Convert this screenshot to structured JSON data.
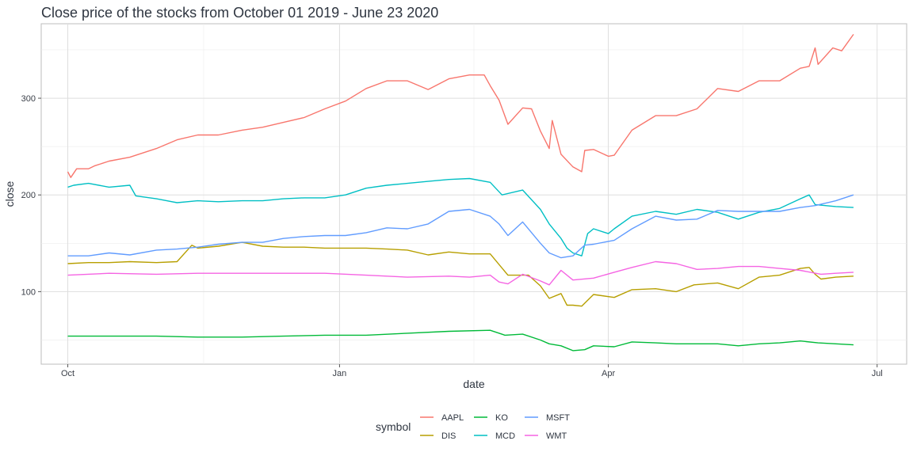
{
  "chart_data": {
    "type": "line",
    "title": "Close price of the stocks from October 01 2019 - June 23 2020",
    "xlabel": "date",
    "ylabel": "close",
    "x_ticks": [
      "Oct",
      "Jan",
      "Apr",
      "Jul"
    ],
    "y_ticks": [
      "100",
      "200",
      "300"
    ],
    "legend_title": "symbol",
    "legend_position": "bottom",
    "grid": true,
    "xlim": [
      "2019-09-22",
      "2020-07-11"
    ],
    "ylim": [
      25,
      377
    ],
    "series": [
      {
        "name": "AAPL",
        "color": "#F8766D",
        "points": [
          [
            "2019-10-01",
            224
          ],
          [
            "2019-10-02",
            218
          ],
          [
            "2019-10-04",
            227
          ],
          [
            "2019-10-08",
            227
          ],
          [
            "2019-10-10",
            230
          ],
          [
            "2019-10-15",
            235
          ],
          [
            "2019-10-22",
            239
          ],
          [
            "2019-10-31",
            248
          ],
          [
            "2019-11-07",
            257
          ],
          [
            "2019-11-14",
            262
          ],
          [
            "2019-11-21",
            262
          ],
          [
            "2019-11-29",
            267
          ],
          [
            "2019-12-06",
            270
          ],
          [
            "2019-12-13",
            275
          ],
          [
            "2019-12-20",
            280
          ],
          [
            "2019-12-27",
            289
          ],
          [
            "2020-01-03",
            297
          ],
          [
            "2020-01-10",
            310
          ],
          [
            "2020-01-17",
            318
          ],
          [
            "2020-01-24",
            318
          ],
          [
            "2020-01-31",
            309
          ],
          [
            "2020-02-07",
            320
          ],
          [
            "2020-02-14",
            324
          ],
          [
            "2020-02-19",
            324
          ],
          [
            "2020-02-21",
            313
          ],
          [
            "2020-02-24",
            298
          ],
          [
            "2020-02-27",
            273
          ],
          [
            "2020-03-03",
            290
          ],
          [
            "2020-03-06",
            289
          ],
          [
            "2020-03-09",
            266
          ],
          [
            "2020-03-12",
            248
          ],
          [
            "2020-03-13",
            277
          ],
          [
            "2020-03-16",
            242
          ],
          [
            "2020-03-20",
            229
          ],
          [
            "2020-03-23",
            224
          ],
          [
            "2020-03-24",
            246
          ],
          [
            "2020-03-27",
            247
          ],
          [
            "2020-04-01",
            240
          ],
          [
            "2020-04-03",
            241
          ],
          [
            "2020-04-09",
            267
          ],
          [
            "2020-04-17",
            282
          ],
          [
            "2020-04-24",
            282
          ],
          [
            "2020-05-01",
            289
          ],
          [
            "2020-05-08",
            310
          ],
          [
            "2020-05-15",
            307
          ],
          [
            "2020-05-22",
            318
          ],
          [
            "2020-05-29",
            318
          ],
          [
            "2020-06-05",
            331
          ],
          [
            "2020-06-08",
            333
          ],
          [
            "2020-06-10",
            352
          ],
          [
            "2020-06-11",
            335
          ],
          [
            "2020-06-16",
            352
          ],
          [
            "2020-06-19",
            349
          ],
          [
            "2020-06-23",
            366
          ]
        ]
      },
      {
        "name": "DIS",
        "color": "#B79F00",
        "points": [
          [
            "2019-10-01",
            129
          ],
          [
            "2019-10-08",
            130
          ],
          [
            "2019-10-15",
            130
          ],
          [
            "2019-10-22",
            131
          ],
          [
            "2019-10-31",
            130
          ],
          [
            "2019-11-07",
            131
          ],
          [
            "2019-11-12",
            148
          ],
          [
            "2019-11-14",
            145
          ],
          [
            "2019-11-21",
            147
          ],
          [
            "2019-11-29",
            151
          ],
          [
            "2019-12-06",
            147
          ],
          [
            "2019-12-13",
            146
          ],
          [
            "2019-12-20",
            146
          ],
          [
            "2019-12-27",
            145
          ],
          [
            "2020-01-03",
            145
          ],
          [
            "2020-01-10",
            145
          ],
          [
            "2020-01-17",
            144
          ],
          [
            "2020-01-24",
            143
          ],
          [
            "2020-01-31",
            138
          ],
          [
            "2020-02-07",
            141
          ],
          [
            "2020-02-14",
            139
          ],
          [
            "2020-02-21",
            139
          ],
          [
            "2020-02-27",
            117
          ],
          [
            "2020-03-05",
            117
          ],
          [
            "2020-03-09",
            106
          ],
          [
            "2020-03-12",
            93
          ],
          [
            "2020-03-16",
            98
          ],
          [
            "2020-03-18",
            86
          ],
          [
            "2020-03-20",
            86
          ],
          [
            "2020-03-23",
            85
          ],
          [
            "2020-03-27",
            97
          ],
          [
            "2020-04-03",
            94
          ],
          [
            "2020-04-09",
            102
          ],
          [
            "2020-04-17",
            103
          ],
          [
            "2020-04-24",
            100
          ],
          [
            "2020-04-30",
            107
          ],
          [
            "2020-05-08",
            109
          ],
          [
            "2020-05-15",
            103
          ],
          [
            "2020-05-22",
            115
          ],
          [
            "2020-05-29",
            117
          ],
          [
            "2020-06-05",
            124
          ],
          [
            "2020-06-08",
            125
          ],
          [
            "2020-06-10",
            118
          ],
          [
            "2020-06-12",
            113
          ],
          [
            "2020-06-17",
            115
          ],
          [
            "2020-06-23",
            116
          ]
        ]
      },
      {
        "name": "KO",
        "color": "#00BA38",
        "points": [
          [
            "2019-10-01",
            54
          ],
          [
            "2019-10-15",
            54
          ],
          [
            "2019-10-31",
            54
          ],
          [
            "2019-11-14",
            53
          ],
          [
            "2019-11-29",
            53
          ],
          [
            "2019-12-13",
            54
          ],
          [
            "2019-12-27",
            55
          ],
          [
            "2020-01-10",
            55
          ],
          [
            "2020-01-24",
            57
          ],
          [
            "2020-02-07",
            59
          ],
          [
            "2020-02-21",
            60
          ],
          [
            "2020-02-26",
            55
          ],
          [
            "2020-03-03",
            56
          ],
          [
            "2020-03-09",
            50
          ],
          [
            "2020-03-12",
            46
          ],
          [
            "2020-03-16",
            44
          ],
          [
            "2020-03-20",
            39
          ],
          [
            "2020-03-24",
            40
          ],
          [
            "2020-03-27",
            44
          ],
          [
            "2020-04-03",
            43
          ],
          [
            "2020-04-09",
            48
          ],
          [
            "2020-04-17",
            47
          ],
          [
            "2020-04-24",
            46
          ],
          [
            "2020-05-01",
            46
          ],
          [
            "2020-05-08",
            46
          ],
          [
            "2020-05-15",
            44
          ],
          [
            "2020-05-22",
            46
          ],
          [
            "2020-05-29",
            47
          ],
          [
            "2020-06-05",
            49
          ],
          [
            "2020-06-11",
            47
          ],
          [
            "2020-06-17",
            46
          ],
          [
            "2020-06-23",
            45
          ]
        ]
      },
      {
        "name": "MCD",
        "color": "#00BFC4",
        "points": [
          [
            "2019-10-01",
            208
          ],
          [
            "2019-10-03",
            210
          ],
          [
            "2019-10-08",
            212
          ],
          [
            "2019-10-15",
            208
          ],
          [
            "2019-10-22",
            210
          ],
          [
            "2019-10-24",
            199
          ],
          [
            "2019-10-31",
            196
          ],
          [
            "2019-11-07",
            192
          ],
          [
            "2019-11-14",
            194
          ],
          [
            "2019-11-21",
            193
          ],
          [
            "2019-11-29",
            194
          ],
          [
            "2019-12-06",
            194
          ],
          [
            "2019-12-13",
            196
          ],
          [
            "2019-12-20",
            197
          ],
          [
            "2019-12-27",
            197
          ],
          [
            "2020-01-03",
            200
          ],
          [
            "2020-01-10",
            207
          ],
          [
            "2020-01-17",
            210
          ],
          [
            "2020-01-24",
            212
          ],
          [
            "2020-01-31",
            214
          ],
          [
            "2020-02-07",
            216
          ],
          [
            "2020-02-14",
            217
          ],
          [
            "2020-02-21",
            213
          ],
          [
            "2020-02-25",
            200
          ],
          [
            "2020-03-03",
            205
          ],
          [
            "2020-03-09",
            185
          ],
          [
            "2020-03-12",
            170
          ],
          [
            "2020-03-16",
            155
          ],
          [
            "2020-03-18",
            145
          ],
          [
            "2020-03-20",
            140
          ],
          [
            "2020-03-23",
            137
          ],
          [
            "2020-03-25",
            160
          ],
          [
            "2020-03-27",
            165
          ],
          [
            "2020-04-01",
            160
          ],
          [
            "2020-04-03",
            165
          ],
          [
            "2020-04-09",
            178
          ],
          [
            "2020-04-17",
            183
          ],
          [
            "2020-04-24",
            180
          ],
          [
            "2020-05-01",
            185
          ],
          [
            "2020-05-08",
            182
          ],
          [
            "2020-05-15",
            175
          ],
          [
            "2020-05-22",
            182
          ],
          [
            "2020-05-29",
            186
          ],
          [
            "2020-06-05",
            196
          ],
          [
            "2020-06-08",
            200
          ],
          [
            "2020-06-10",
            190
          ],
          [
            "2020-06-17",
            188
          ],
          [
            "2020-06-23",
            187
          ]
        ]
      },
      {
        "name": "MSFT",
        "color": "#619CFF",
        "points": [
          [
            "2019-10-01",
            137
          ],
          [
            "2019-10-08",
            137
          ],
          [
            "2019-10-15",
            140
          ],
          [
            "2019-10-22",
            138
          ],
          [
            "2019-10-31",
            143
          ],
          [
            "2019-11-07",
            144
          ],
          [
            "2019-11-14",
            146
          ],
          [
            "2019-11-21",
            149
          ],
          [
            "2019-11-29",
            151
          ],
          [
            "2019-12-06",
            151
          ],
          [
            "2019-12-13",
            155
          ],
          [
            "2019-12-20",
            157
          ],
          [
            "2019-12-27",
            158
          ],
          [
            "2020-01-03",
            158
          ],
          [
            "2020-01-10",
            161
          ],
          [
            "2020-01-17",
            166
          ],
          [
            "2020-01-24",
            165
          ],
          [
            "2020-01-31",
            170
          ],
          [
            "2020-02-07",
            183
          ],
          [
            "2020-02-14",
            185
          ],
          [
            "2020-02-21",
            178
          ],
          [
            "2020-02-24",
            170
          ],
          [
            "2020-02-27",
            158
          ],
          [
            "2020-03-03",
            172
          ],
          [
            "2020-03-09",
            150
          ],
          [
            "2020-03-12",
            140
          ],
          [
            "2020-03-16",
            135
          ],
          [
            "2020-03-20",
            137
          ],
          [
            "2020-03-24",
            148
          ],
          [
            "2020-03-27",
            149
          ],
          [
            "2020-04-01",
            152
          ],
          [
            "2020-04-03",
            153
          ],
          [
            "2020-04-09",
            165
          ],
          [
            "2020-04-17",
            178
          ],
          [
            "2020-04-24",
            174
          ],
          [
            "2020-05-01",
            175
          ],
          [
            "2020-05-08",
            184
          ],
          [
            "2020-05-15",
            183
          ],
          [
            "2020-05-22",
            183
          ],
          [
            "2020-05-29",
            183
          ],
          [
            "2020-06-05",
            187
          ],
          [
            "2020-06-10",
            189
          ],
          [
            "2020-06-17",
            194
          ],
          [
            "2020-06-23",
            200
          ]
        ]
      },
      {
        "name": "WMT",
        "color": "#F564E3",
        "points": [
          [
            "2019-10-01",
            117
          ],
          [
            "2019-10-15",
            119
          ],
          [
            "2019-10-31",
            118
          ],
          [
            "2019-11-14",
            119
          ],
          [
            "2019-11-29",
            119
          ],
          [
            "2019-12-13",
            119
          ],
          [
            "2019-12-27",
            119
          ],
          [
            "2020-01-10",
            117
          ],
          [
            "2020-01-24",
            115
          ],
          [
            "2020-02-07",
            116
          ],
          [
            "2020-02-14",
            115
          ],
          [
            "2020-02-21",
            117
          ],
          [
            "2020-02-24",
            110
          ],
          [
            "2020-02-27",
            108
          ],
          [
            "2020-03-03",
            118
          ],
          [
            "2020-03-09",
            111
          ],
          [
            "2020-03-12",
            107
          ],
          [
            "2020-03-16",
            122
          ],
          [
            "2020-03-20",
            112
          ],
          [
            "2020-03-27",
            114
          ],
          [
            "2020-04-03",
            120
          ],
          [
            "2020-04-09",
            125
          ],
          [
            "2020-04-17",
            131
          ],
          [
            "2020-04-24",
            129
          ],
          [
            "2020-05-01",
            123
          ],
          [
            "2020-05-08",
            124
          ],
          [
            "2020-05-15",
            126
          ],
          [
            "2020-05-22",
            126
          ],
          [
            "2020-05-29",
            124
          ],
          [
            "2020-06-05",
            122
          ],
          [
            "2020-06-12",
            118
          ],
          [
            "2020-06-17",
            119
          ],
          [
            "2020-06-23",
            120
          ]
        ]
      }
    ]
  }
}
